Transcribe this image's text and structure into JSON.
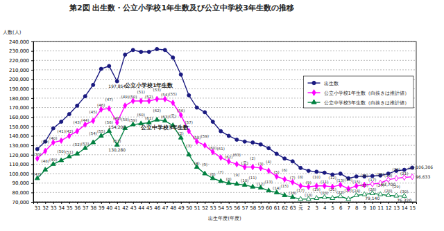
{
  "chart_data": {
    "type": "line",
    "title": "第2図 出生数・公立小学校1年生数及び公立中学校3年生数の推移",
    "y_label": "人数(人)",
    "x_label": "出生年度(年度)",
    "categories": [
      "31",
      "32",
      "33",
      "34",
      "35",
      "36",
      "37",
      "38",
      "39",
      "40",
      "41",
      "42",
      "43",
      "44",
      "45",
      "46",
      "47",
      "48",
      "49",
      "50",
      "51",
      "52",
      "53",
      "54",
      "55",
      "56",
      "57",
      "58",
      "59",
      "60",
      "61",
      "62",
      "63",
      "元",
      "2",
      "3",
      "4",
      "5",
      "6",
      "7",
      "8",
      "9",
      "10",
      "11",
      "12",
      "13",
      "14",
      "15"
    ],
    "ylim": [
      70000,
      240000
    ],
    "yticks": [
      {
        "value": 70000,
        "label": "70,000"
      },
      {
        "value": 80000,
        "label": "80,000"
      },
      {
        "value": 90000,
        "label": "90,000"
      },
      {
        "value": 100000,
        "label": "100,000"
      },
      {
        "value": 110000,
        "label": "110,000"
      },
      {
        "value": 120000,
        "label": "120,000"
      },
      {
        "value": 130000,
        "label": "130,000"
      },
      {
        "value": 140000,
        "label": "140,000"
      },
      {
        "value": 150000,
        "label": "150,000"
      },
      {
        "value": 160000,
        "label": "160,000"
      },
      {
        "value": 170000,
        "label": "170,000"
      },
      {
        "value": 180000,
        "label": "180,000"
      },
      {
        "value": 190000,
        "label": "190,000"
      },
      {
        "value": 200000,
        "label": "200,000"
      },
      {
        "value": 210000,
        "label": "210,000"
      },
      {
        "value": 220000,
        "label": "220,000"
      },
      {
        "value": 230000,
        "label": "230,000"
      },
      {
        "value": 240000,
        "label": "240,000"
      }
    ],
    "grid": true,
    "legend": "upper right",
    "series": [
      {
        "name": "出生数",
        "color": "#1a1a80",
        "marker": "circle",
        "line_style": "solid",
        "values": [
          126000,
          134000,
          148000,
          155000,
          163000,
          172000,
          182000,
          194000,
          211000,
          214000,
          197854,
          226000,
          231000,
          229000,
          229000,
          232000,
          231000,
          223000,
          205000,
          183000,
          170000,
          165000,
          155000,
          145000,
          140000,
          136000,
          134000,
          133000,
          131000,
          127000,
          121000,
          116000,
          113000,
          106000,
          103000,
          102000,
          101000,
          99000,
          100000,
          95000,
          97000,
          97000,
          97500,
          98000,
          100000,
          103000,
          104000,
          106306
        ]
      },
      {
        "name": "公立小学校1年生数（白抜きは推計値）",
        "color": "#ff00ff",
        "marker": "diamond",
        "line_style": "solid",
        "values": [
          116000,
          124000,
          133000,
          135000,
          140000,
          145000,
          152000,
          156000,
          168000,
          169000,
          154200,
          172000,
          177000,
          177000,
          177000,
          179000,
          179000,
          175000,
          162000,
          145000,
          134000,
          130000,
          123000,
          117000,
          113000,
          110000,
          107000,
          107000,
          106000,
          103000,
          97000,
          94000,
          91000,
          87000,
          86000,
          87000,
          87000,
          86000,
          88000,
          84000,
          87000,
          88000,
          89000,
          90000,
          93700,
          95000,
          96000,
          96633
        ],
        "estimated": [
          false,
          false,
          false,
          false,
          false,
          false,
          false,
          false,
          false,
          false,
          false,
          false,
          false,
          false,
          false,
          false,
          false,
          false,
          false,
          false,
          false,
          false,
          false,
          false,
          false,
          false,
          false,
          false,
          false,
          false,
          false,
          false,
          false,
          false,
          false,
          false,
          false,
          false,
          false,
          false,
          false,
          false,
          true,
          true,
          true,
          true,
          true,
          true
        ],
        "point_labels": [
          "(38)",
          "(39)",
          "(40)",
          "(41)",
          "(42)",
          "(43)",
          "(44)",
          "(45)",
          "(46)",
          "(47)",
          "(48)",
          "(49)",
          "(50)",
          "(51)",
          "(52)",
          "(53)",
          "(54)",
          "(55)",
          "(56)",
          "(57)",
          "(58)",
          "(59)",
          "(60)",
          "(61)",
          "(62)",
          "(63)",
          "(元)",
          "(2)",
          "(3)",
          "(4)",
          "(5)",
          "(6)",
          "(7)",
          "(8)",
          "(9)",
          "(10)",
          "(11)",
          "(12)",
          "(13)",
          "(14)",
          "(15)",
          "(16)",
          "(17)",
          "(18)",
          "(19)",
          "(20)",
          "(21)",
          "(22)"
        ]
      },
      {
        "name": "公立中学校3年生数（白抜きは推計値）",
        "color": "#008040",
        "marker": "triangle",
        "line_style": "solid",
        "values": [
          95000,
          104000,
          110000,
          114000,
          118000,
          121000,
          127000,
          133000,
          140000,
          145000,
          130280,
          148000,
          152000,
          153000,
          154000,
          157000,
          156000,
          151000,
          138000,
          120000,
          107000,
          100000,
          95000,
          92000,
          90000,
          89000,
          88000,
          86000,
          85000,
          82000,
          80000,
          77000,
          75000,
          73000,
          73000,
          74000,
          75000,
          74000,
          76000,
          73000,
          77000,
          78000,
          79140,
          78000,
          77000,
          76500,
          76320,
          null
        ],
        "estimated": [
          false,
          false,
          false,
          false,
          false,
          false,
          false,
          false,
          false,
          false,
          false,
          false,
          false,
          false,
          false,
          false,
          false,
          false,
          false,
          false,
          false,
          false,
          false,
          false,
          false,
          false,
          false,
          false,
          false,
          false,
          false,
          false,
          false,
          true,
          true,
          true,
          true,
          true,
          true,
          true,
          true,
          true,
          true,
          true,
          true,
          true,
          true,
          null
        ],
        "point_labels": [
          "(47)",
          "(48)",
          "(49)",
          "(50)",
          "(51)",
          "(52)",
          "(53)",
          "(54)",
          "(55)",
          "(56)",
          "(57)",
          "(58)",
          "(59)",
          "(60)",
          "(61)",
          "(62)",
          "(63)",
          "(元)",
          "(2)",
          "(3)",
          "(4)",
          "(5)",
          "(6)",
          "(7)",
          "(8)",
          "(9)",
          "(10)",
          "(11)",
          "(12)",
          "(13)",
          "(14)",
          "(15)",
          "(16)",
          "(17)",
          "(18)",
          "(19)",
          "(20)",
          "(21)",
          "(22)",
          "(23)",
          "(24)",
          "(25)",
          "(26)",
          "(27)",
          "(28)",
          "(29)",
          "(30)",
          null
        ]
      }
    ],
    "annotations": [
      {
        "text": "公立小学校1年生数",
        "series": 1,
        "index": 14,
        "position": "above"
      },
      {
        "text": "公立中学校3年生数",
        "series": 2,
        "index": 16,
        "position": "below"
      },
      {
        "text": "197,854",
        "series": 0,
        "index": 10,
        "position": "below"
      },
      {
        "text": "154,200",
        "series": 1,
        "index": 10,
        "position": "below"
      },
      {
        "text": "130,280",
        "series": 2,
        "index": 10,
        "position": "below"
      },
      {
        "text": "106,306",
        "series": 0,
        "index": 47,
        "position": "right"
      },
      {
        "text": "96,633",
        "series": 1,
        "index": 47,
        "position": "right"
      },
      {
        "text": "93,700",
        "series": 1,
        "index": 44,
        "position": "below"
      },
      {
        "text": "79,140",
        "series": 2,
        "index": 42,
        "position": "below"
      },
      {
        "text": "76,320",
        "series": 2,
        "index": 46,
        "position": "below"
      }
    ]
  }
}
